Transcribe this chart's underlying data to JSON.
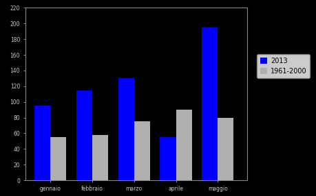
{
  "categories": [
    "gennaio",
    "febbraio",
    "marzo",
    "aprile",
    "maggio"
  ],
  "values_2013": [
    95,
    115,
    130,
    55,
    195
  ],
  "values_clim": [
    55,
    58,
    75,
    90,
    80
  ],
  "bar_color_2013": "#0000ff",
  "bar_color_clim": "#b0b0b0",
  "legend_2013": "2013",
  "legend_clim": "1961-2000",
  "background_color": "#000000",
  "text_color": "#c8c8c8",
  "legend_bg": "#ffffff",
  "legend_edge": "#888888",
  "ylim": [
    0,
    220
  ],
  "yticks": [
    0,
    20,
    40,
    60,
    80,
    100,
    120,
    140,
    160,
    180,
    200,
    220
  ],
  "bar_width": 0.38,
  "figsize": [
    4.6,
    2.86
  ],
  "dpi": 100
}
